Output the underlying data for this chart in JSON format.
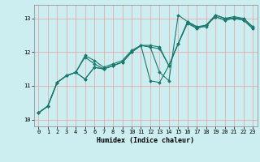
{
  "xlabel": "Humidex (Indice chaleur)",
  "background_color": "#cceef0",
  "grid_color": "#e8a0a0",
  "line_color": "#1a7a6e",
  "xlim": [
    -0.5,
    23.5
  ],
  "ylim": [
    9.8,
    13.4
  ],
  "yticks": [
    10,
    11,
    12,
    13
  ],
  "xticks": [
    0,
    1,
    2,
    3,
    4,
    5,
    6,
    7,
    8,
    9,
    10,
    11,
    12,
    13,
    14,
    15,
    16,
    17,
    18,
    19,
    20,
    21,
    22,
    23
  ],
  "series": [
    [
      10.2,
      10.4,
      11.1,
      11.3,
      11.4,
      11.9,
      11.75,
      11.55,
      11.65,
      11.75,
      12.05,
      12.2,
      12.15,
      11.4,
      11.15,
      13.1,
      12.9,
      12.75,
      12.75,
      13.1,
      13.0,
      13.05,
      13.0,
      12.75
    ],
    [
      10.2,
      10.4,
      11.1,
      11.3,
      11.4,
      11.85,
      11.65,
      11.5,
      11.6,
      11.7,
      12.0,
      12.2,
      12.2,
      12.15,
      11.6,
      12.25,
      12.9,
      12.75,
      12.8,
      13.1,
      13.0,
      13.0,
      13.0,
      12.75
    ],
    [
      10.2,
      10.4,
      11.1,
      11.3,
      11.4,
      11.2,
      11.55,
      11.5,
      11.6,
      11.7,
      12.0,
      12.2,
      11.15,
      11.1,
      11.6,
      12.25,
      12.9,
      12.7,
      12.8,
      13.05,
      12.95,
      13.0,
      12.95,
      12.7
    ],
    [
      10.2,
      10.4,
      11.1,
      11.3,
      11.4,
      11.2,
      11.55,
      11.5,
      11.6,
      11.7,
      12.0,
      12.2,
      12.15,
      12.1,
      11.6,
      12.25,
      12.85,
      12.7,
      12.8,
      13.05,
      12.95,
      13.0,
      12.95,
      12.7
    ]
  ]
}
